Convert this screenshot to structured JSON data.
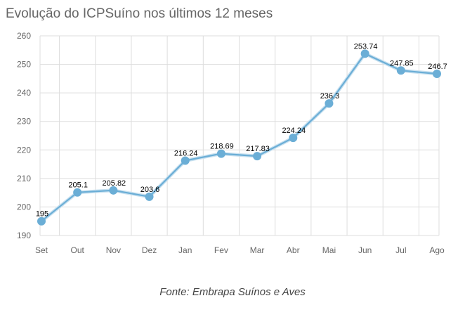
{
  "chart_data": {
    "type": "line",
    "title": "Evolução do ICPSuíno nos últimos 12 meses",
    "source": "Fonte: Embrapa Suínos e Aves",
    "categories": [
      "Set",
      "Out",
      "Nov",
      "Dez",
      "Jan",
      "Fev",
      "Mar",
      "Abr",
      "Mai",
      "Jun",
      "Jul",
      "Ago"
    ],
    "series": [
      {
        "values": [
          195,
          205.1,
          205.82,
          203.6,
          216.24,
          218.69,
          217.83,
          224.24,
          236.3,
          253.74,
          247.85,
          246.7
        ],
        "data_labels": [
          "195",
          "205.1",
          "205.82",
          "203.6",
          "216.24",
          "218.69",
          "217.83",
          "224.24",
          "236.3",
          "253.74",
          "247.85",
          "246.7"
        ],
        "color": "#6baed6"
      }
    ],
    "yticks": [
      "190",
      "200",
      "210",
      "220",
      "230",
      "240",
      "250",
      "260"
    ],
    "ylim": [
      190,
      260
    ],
    "grid": true,
    "legend": "none",
    "colors": {
      "line": "#6baed6",
      "marker": "#6baed6",
      "grid": "#dddddd"
    }
  }
}
